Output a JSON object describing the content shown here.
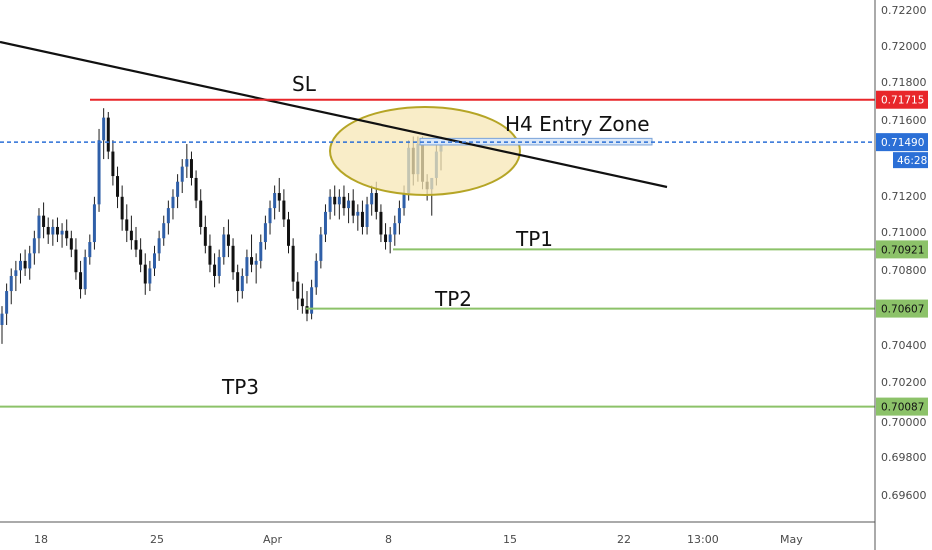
{
  "chart_data": {
    "type": "candlestick",
    "y_axis": {
      "ticks": [
        "0.72200",
        "0.72000",
        "0.71800",
        "0.71600",
        "0.71200",
        "0.71000",
        "0.70800",
        "0.70400",
        "0.70200",
        "0.70000",
        "0.69800",
        "0.69600"
      ],
      "range": [
        0.6944,
        0.7232
      ]
    },
    "x_axis": {
      "ticks": [
        "18",
        "25",
        "Apr",
        "8",
        "15",
        "22",
        "13:00",
        "May"
      ]
    },
    "levels": [
      {
        "label": "SL",
        "price": 0.71715,
        "price_tag": "0.71715",
        "color": "#e8262a"
      },
      {
        "label": "TP1",
        "price": 0.70921,
        "price_tag": "0.70921",
        "color": "#8cc269"
      },
      {
        "label": "TP2",
        "price": 0.70607,
        "price_tag": "0.70607",
        "color": "#8cc269"
      },
      {
        "label": "TP3",
        "price": 0.70087,
        "price_tag": "0.70087",
        "color": "#8cc269"
      }
    ],
    "current_price": {
      "price": 0.7149,
      "price_tag": "0.71490",
      "countdown": "46:28",
      "color": "#2b6fd6"
    },
    "entry_zone": {
      "label": "H4 Entry Zone",
      "price_top": 0.7151,
      "price_bottom": 0.71475
    },
    "trendline": {
      "start_price": 0.7202,
      "end_price": 0.7132,
      "color": "#111111"
    },
    "highlight": {
      "shape": "ellipse",
      "fill": "#f7e7b6",
      "stroke": "#b5a526"
    },
    "candles": [
      [
        0.7052,
        0.7062,
        0.7042,
        0.7058
      ],
      [
        0.7058,
        0.7074,
        0.7052,
        0.707
      ],
      [
        0.707,
        0.7082,
        0.7063,
        0.7078
      ],
      [
        0.7078,
        0.7086,
        0.707,
        0.7081
      ],
      [
        0.7081,
        0.709,
        0.7074,
        0.7086
      ],
      [
        0.7086,
        0.7092,
        0.7078,
        0.7082
      ],
      [
        0.7082,
        0.7094,
        0.7076,
        0.709
      ],
      [
        0.709,
        0.7102,
        0.7084,
        0.7098
      ],
      [
        0.7098,
        0.7114,
        0.709,
        0.711
      ],
      [
        0.711,
        0.7117,
        0.7098,
        0.7104
      ],
      [
        0.7104,
        0.7109,
        0.7095,
        0.71
      ],
      [
        0.71,
        0.7108,
        0.7094,
        0.7104
      ],
      [
        0.7104,
        0.7109,
        0.7096,
        0.71
      ],
      [
        0.71,
        0.7106,
        0.7093,
        0.7102
      ],
      [
        0.7102,
        0.7108,
        0.7094,
        0.7098
      ],
      [
        0.7098,
        0.7102,
        0.7088,
        0.7092
      ],
      [
        0.7092,
        0.7098,
        0.7076,
        0.708
      ],
      [
        0.708,
        0.7086,
        0.7066,
        0.7071
      ],
      [
        0.7071,
        0.7092,
        0.7068,
        0.7088
      ],
      [
        0.7088,
        0.71,
        0.7084,
        0.7096
      ],
      [
        0.7096,
        0.712,
        0.7092,
        0.7116
      ],
      [
        0.7116,
        0.7156,
        0.7112,
        0.715
      ],
      [
        0.715,
        0.7167,
        0.714,
        0.7162
      ],
      [
        0.7162,
        0.7165,
        0.714,
        0.7144
      ],
      [
        0.7144,
        0.715,
        0.7126,
        0.7131
      ],
      [
        0.7131,
        0.7136,
        0.7114,
        0.712
      ],
      [
        0.712,
        0.7126,
        0.7102,
        0.7108
      ],
      [
        0.7108,
        0.7116,
        0.7096,
        0.7102
      ],
      [
        0.7102,
        0.711,
        0.7092,
        0.7097
      ],
      [
        0.7097,
        0.7104,
        0.7088,
        0.7092
      ],
      [
        0.7092,
        0.7098,
        0.708,
        0.7084
      ],
      [
        0.7084,
        0.709,
        0.7068,
        0.7074
      ],
      [
        0.7074,
        0.7086,
        0.707,
        0.7082
      ],
      [
        0.7082,
        0.7094,
        0.7078,
        0.709
      ],
      [
        0.709,
        0.7102,
        0.7086,
        0.7098
      ],
      [
        0.7098,
        0.711,
        0.7094,
        0.7106
      ],
      [
        0.7106,
        0.7118,
        0.71,
        0.7114
      ],
      [
        0.7114,
        0.7124,
        0.7108,
        0.712
      ],
      [
        0.712,
        0.7132,
        0.7114,
        0.7128
      ],
      [
        0.7128,
        0.714,
        0.7122,
        0.7136
      ],
      [
        0.7136,
        0.7148,
        0.713,
        0.714
      ],
      [
        0.714,
        0.7144,
        0.7126,
        0.713
      ],
      [
        0.713,
        0.7134,
        0.7114,
        0.7118
      ],
      [
        0.7118,
        0.7124,
        0.71,
        0.7104
      ],
      [
        0.7104,
        0.711,
        0.709,
        0.7094
      ],
      [
        0.7094,
        0.71,
        0.708,
        0.7084
      ],
      [
        0.7084,
        0.709,
        0.7072,
        0.7078
      ],
      [
        0.7078,
        0.7092,
        0.7074,
        0.7088
      ],
      [
        0.7088,
        0.7104,
        0.7084,
        0.71
      ],
      [
        0.71,
        0.7108,
        0.7088,
        0.7094
      ],
      [
        0.7094,
        0.7098,
        0.7076,
        0.708
      ],
      [
        0.708,
        0.7084,
        0.7064,
        0.707
      ],
      [
        0.707,
        0.7082,
        0.7066,
        0.7078
      ],
      [
        0.7078,
        0.7092,
        0.7074,
        0.7088
      ],
      [
        0.7088,
        0.71,
        0.708,
        0.7084
      ],
      [
        0.7084,
        0.709,
        0.7074,
        0.7086
      ],
      [
        0.7086,
        0.71,
        0.7082,
        0.7096
      ],
      [
        0.7096,
        0.711,
        0.7092,
        0.7106
      ],
      [
        0.7106,
        0.7118,
        0.71,
        0.7114
      ],
      [
        0.7114,
        0.7126,
        0.7108,
        0.7122
      ],
      [
        0.7122,
        0.713,
        0.7112,
        0.7118
      ],
      [
        0.7118,
        0.7124,
        0.7104,
        0.7108
      ],
      [
        0.7108,
        0.7112,
        0.709,
        0.7094
      ],
      [
        0.7094,
        0.7098,
        0.707,
        0.7075
      ],
      [
        0.7075,
        0.708,
        0.706,
        0.7066
      ],
      [
        0.7066,
        0.7074,
        0.7058,
        0.7062
      ],
      [
        0.7062,
        0.707,
        0.7054,
        0.7058
      ],
      [
        0.7058,
        0.7076,
        0.7055,
        0.7072
      ],
      [
        0.7072,
        0.709,
        0.7068,
        0.7086
      ],
      [
        0.7086,
        0.7104,
        0.7082,
        0.71
      ],
      [
        0.71,
        0.7116,
        0.7096,
        0.7112
      ],
      [
        0.7112,
        0.7124,
        0.7108,
        0.712
      ],
      [
        0.712,
        0.7126,
        0.711,
        0.7116
      ],
      [
        0.7116,
        0.7124,
        0.7108,
        0.712
      ],
      [
        0.712,
        0.7126,
        0.711,
        0.7114
      ],
      [
        0.7114,
        0.7122,
        0.7106,
        0.7118
      ],
      [
        0.7118,
        0.7124,
        0.7106,
        0.711
      ],
      [
        0.711,
        0.7116,
        0.7102,
        0.7112
      ],
      [
        0.7112,
        0.7118,
        0.71,
        0.7104
      ],
      [
        0.7104,
        0.712,
        0.71,
        0.7116
      ],
      [
        0.7116,
        0.7126,
        0.711,
        0.7122
      ],
      [
        0.7122,
        0.7128,
        0.7108,
        0.7112
      ],
      [
        0.7112,
        0.7116,
        0.7096,
        0.71
      ],
      [
        0.71,
        0.7106,
        0.7092,
        0.7096
      ],
      [
        0.7096,
        0.7104,
        0.709,
        0.71
      ],
      [
        0.71,
        0.711,
        0.7094,
        0.7106
      ],
      [
        0.7106,
        0.7118,
        0.71,
        0.7114
      ],
      [
        0.7114,
        0.7126,
        0.711,
        0.7122
      ],
      [
        0.7122,
        0.715,
        0.7118,
        0.7146
      ],
      [
        0.7146,
        0.7152,
        0.7126,
        0.7132
      ],
      [
        0.7132,
        0.7152,
        0.7128,
        0.7148
      ],
      [
        0.7148,
        0.7152,
        0.7124,
        0.7128
      ],
      [
        0.7128,
        0.7132,
        0.7118,
        0.7124
      ],
      [
        0.7124,
        0.7128,
        0.711,
        0.713
      ],
      [
        0.713,
        0.7148,
        0.7126,
        0.7144
      ],
      [
        0.7144,
        0.7152,
        0.7134,
        0.7149
      ]
    ]
  }
}
